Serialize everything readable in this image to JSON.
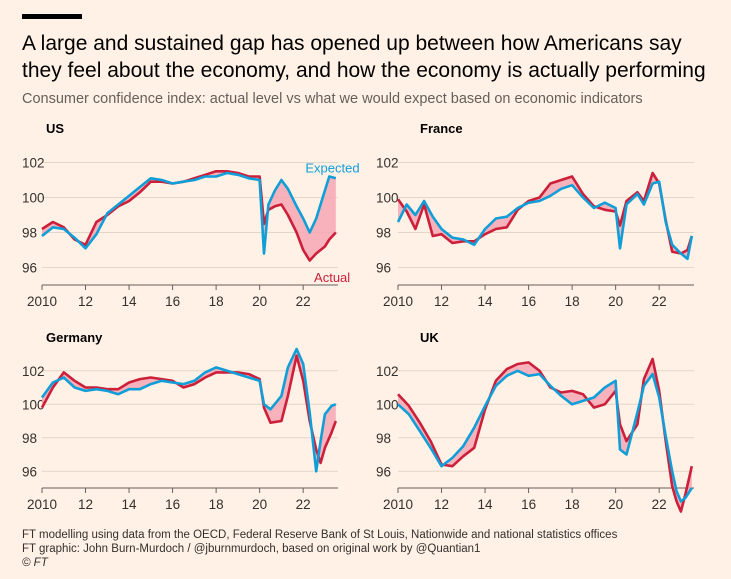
{
  "header": {
    "title": "A large and sustained gap has opened up between how Americans say they feel about the economy, and how the economy is actually performing",
    "subtitle": "Consumer confidence index: actual level vs what we would expect based on economic indicators"
  },
  "footer": {
    "line1": "FT modelling using data from the OECD, Federal Reserve Bank of St Louis, Nationwide and national statistics offices",
    "line2": "FT graphic: John Burn-Murdoch / @jburnmurdoch, based on original work by @Quantian1",
    "logo": "© FT"
  },
  "colors": {
    "expected": "#0F9ED8",
    "actual": "#CC1F3A",
    "gap_fill": "#F6A7B5",
    "background": "#FFF1E5"
  },
  "chart_data": [
    {
      "type": "line",
      "title": "US",
      "xlim": [
        2010,
        2023.6
      ],
      "ylim": [
        95,
        103
      ],
      "x_ticks": [
        "2010",
        "12",
        "14",
        "16",
        "18",
        "20",
        "22"
      ],
      "y_ticks": [
        "96",
        "98",
        "100",
        "102"
      ],
      "series": [
        {
          "name": "Expected",
          "x": [
            2010,
            2010.5,
            2011,
            2011.5,
            2012,
            2012.5,
            2013,
            2013.5,
            2014,
            2014.5,
            2015,
            2015.5,
            2016,
            2016.5,
            2017,
            2017.5,
            2018,
            2018.5,
            2019,
            2019.5,
            2020,
            2020.2,
            2020.4,
            2020.7,
            2021,
            2021.3,
            2021.7,
            2022,
            2022.3,
            2022.6,
            2023,
            2023.2,
            2023.5
          ],
          "y": [
            97.8,
            98.3,
            98.2,
            97.7,
            97.1,
            97.9,
            99.1,
            99.6,
            100.1,
            100.6,
            101.1,
            101.0,
            100.8,
            100.9,
            101.0,
            101.2,
            101.2,
            101.4,
            101.3,
            101.1,
            101.0,
            96.8,
            99.6,
            100.4,
            101.0,
            100.5,
            99.5,
            98.8,
            98.0,
            98.8,
            100.4,
            101.2,
            101.1
          ]
        },
        {
          "name": "Actual",
          "x": [
            2010,
            2010.5,
            2011,
            2011.5,
            2012,
            2012.5,
            2013,
            2013.5,
            2014,
            2014.5,
            2015,
            2015.5,
            2016,
            2016.5,
            2017,
            2017.5,
            2018,
            2018.5,
            2019,
            2019.5,
            2020,
            2020.2,
            2020.4,
            2020.7,
            2021,
            2021.3,
            2021.7,
            2022,
            2022.3,
            2022.6,
            2023,
            2023.2,
            2023.5
          ],
          "y": [
            98.2,
            98.6,
            98.3,
            97.6,
            97.3,
            98.6,
            99.0,
            99.5,
            99.8,
            100.3,
            100.9,
            100.9,
            100.8,
            100.9,
            101.1,
            101.3,
            101.5,
            101.5,
            101.4,
            101.2,
            101.2,
            98.5,
            99.3,
            99.5,
            99.6,
            99.0,
            98.0,
            97.0,
            96.4,
            96.8,
            97.2,
            97.6,
            98.0
          ]
        }
      ],
      "annotations": [
        "Expected",
        "Actual"
      ]
    },
    {
      "type": "line",
      "title": "France",
      "xlim": [
        2010,
        2023.6
      ],
      "ylim": [
        95,
        103
      ],
      "x_ticks": [
        "2010",
        "12",
        "14",
        "16",
        "18",
        "20",
        "22"
      ],
      "y_ticks": [
        "96",
        "98",
        "100",
        "102"
      ],
      "series": [
        {
          "name": "Expected",
          "x": [
            2010,
            2010.4,
            2010.8,
            2011.2,
            2011.6,
            2012,
            2012.5,
            2013,
            2013.5,
            2014,
            2014.5,
            2015,
            2015.5,
            2016,
            2016.5,
            2017,
            2017.5,
            2018,
            2018.5,
            2019,
            2019.5,
            2020,
            2020.2,
            2020.5,
            2021,
            2021.3,
            2021.7,
            2022,
            2022.3,
            2022.6,
            2023,
            2023.3,
            2023.5
          ],
          "y": [
            98.6,
            99.6,
            99.0,
            99.8,
            98.9,
            98.2,
            97.7,
            97.6,
            97.3,
            98.2,
            98.8,
            98.9,
            99.4,
            99.7,
            99.8,
            100.1,
            100.5,
            100.7,
            100.0,
            99.4,
            99.7,
            99.4,
            97.1,
            99.6,
            100.2,
            99.6,
            100.8,
            100.9,
            98.6,
            97.3,
            96.8,
            96.5,
            97.8
          ]
        },
        {
          "name": "Actual",
          "x": [
            2010,
            2010.4,
            2010.8,
            2011.2,
            2011.6,
            2012,
            2012.5,
            2013,
            2013.5,
            2014,
            2014.5,
            2015,
            2015.5,
            2016,
            2016.5,
            2017,
            2017.5,
            2018,
            2018.5,
            2019,
            2019.5,
            2020,
            2020.2,
            2020.5,
            2021,
            2021.3,
            2021.7,
            2022,
            2022.3,
            2022.6,
            2023,
            2023.3,
            2023.5
          ],
          "y": [
            99.9,
            99.2,
            98.2,
            99.6,
            97.8,
            97.9,
            97.4,
            97.5,
            97.5,
            97.9,
            98.2,
            98.3,
            99.3,
            99.8,
            100.0,
            100.8,
            101.0,
            101.2,
            100.2,
            99.5,
            99.3,
            99.2,
            98.4,
            99.8,
            100.3,
            99.8,
            101.4,
            100.8,
            98.7,
            96.9,
            96.8,
            97.0,
            97.8
          ]
        }
      ]
    },
    {
      "type": "line",
      "title": "Germany",
      "xlim": [
        2010,
        2023.6
      ],
      "ylim": [
        95,
        103
      ],
      "x_ticks": [
        "2010",
        "12",
        "14",
        "16",
        "18",
        "20",
        "22"
      ],
      "y_ticks": [
        "96",
        "98",
        "100",
        "102"
      ],
      "series": [
        {
          "name": "Expected",
          "x": [
            2010,
            2010.5,
            2011,
            2011.5,
            2012,
            2012.5,
            2013,
            2013.5,
            2014,
            2014.5,
            2015,
            2015.5,
            2016,
            2016.5,
            2017,
            2017.5,
            2018,
            2018.5,
            2019,
            2019.5,
            2020,
            2020.2,
            2020.5,
            2021,
            2021.3,
            2021.7,
            2022,
            2022.3,
            2022.6,
            2022.8,
            2023,
            2023.3,
            2023.5
          ],
          "y": [
            100.4,
            101.3,
            101.6,
            101.0,
            100.8,
            100.9,
            100.8,
            100.6,
            100.9,
            100.9,
            101.2,
            101.4,
            101.3,
            101.2,
            101.4,
            101.9,
            102.2,
            102.0,
            101.8,
            101.6,
            101.4,
            100.0,
            99.7,
            100.5,
            102.2,
            103.3,
            102.4,
            99.5,
            96.0,
            97.8,
            99.4,
            99.9,
            100.0
          ]
        },
        {
          "name": "Actual",
          "x": [
            2010,
            2010.5,
            2011,
            2011.5,
            2012,
            2012.5,
            2013,
            2013.5,
            2014,
            2014.5,
            2015,
            2015.5,
            2016,
            2016.5,
            2017,
            2017.5,
            2018,
            2018.5,
            2019,
            2019.5,
            2020,
            2020.2,
            2020.5,
            2021,
            2021.3,
            2021.7,
            2022,
            2022.3,
            2022.6,
            2022.8,
            2023,
            2023.3,
            2023.5
          ],
          "y": [
            99.8,
            101.0,
            101.9,
            101.4,
            101.0,
            101.0,
            100.9,
            100.9,
            101.3,
            101.5,
            101.6,
            101.5,
            101.4,
            101.0,
            101.2,
            101.6,
            101.9,
            101.9,
            101.9,
            101.8,
            101.5,
            99.8,
            98.9,
            99.0,
            100.5,
            102.9,
            101.4,
            99.0,
            97.3,
            96.5,
            97.4,
            98.3,
            99.0
          ]
        }
      ]
    },
    {
      "type": "line",
      "title": "UK",
      "xlim": [
        2010,
        2023.6
      ],
      "ylim": [
        95,
        103
      ],
      "x_ticks": [
        "2010",
        "12",
        "14",
        "16",
        "18",
        "20",
        "22"
      ],
      "y_ticks": [
        "96",
        "98",
        "100",
        "102"
      ],
      "series": [
        {
          "name": "Expected",
          "x": [
            2010,
            2010.5,
            2011,
            2011.5,
            2012,
            2012.5,
            2013,
            2013.5,
            2014,
            2014.5,
            2015,
            2015.5,
            2016,
            2016.5,
            2017,
            2017.5,
            2018,
            2018.5,
            2019,
            2019.5,
            2020,
            2020.2,
            2020.5,
            2021,
            2021.3,
            2021.7,
            2022,
            2022.3,
            2022.6,
            2022.8,
            2023,
            2023.2,
            2023.5
          ],
          "y": [
            100.0,
            99.4,
            98.4,
            97.4,
            96.3,
            96.8,
            97.5,
            98.6,
            99.9,
            101.1,
            101.7,
            102.0,
            101.7,
            101.8,
            101.1,
            100.5,
            100.0,
            100.2,
            100.4,
            101.0,
            101.4,
            97.3,
            97.0,
            99.5,
            101.1,
            101.8,
            100.4,
            98.1,
            96.0,
            94.8,
            94.2,
            94.4,
            95.0
          ]
        },
        {
          "name": "Actual",
          "x": [
            2010,
            2010.5,
            2011,
            2011.5,
            2012,
            2012.5,
            2013,
            2013.5,
            2014,
            2014.5,
            2015,
            2015.5,
            2016,
            2016.5,
            2017,
            2017.5,
            2018,
            2018.5,
            2019,
            2019.5,
            2020,
            2020.2,
            2020.5,
            2021,
            2021.3,
            2021.7,
            2022,
            2022.3,
            2022.6,
            2022.8,
            2023,
            2023.2,
            2023.5
          ],
          "y": [
            100.6,
            99.9,
            98.9,
            97.8,
            96.4,
            96.3,
            96.9,
            97.4,
            99.7,
            101.4,
            102.1,
            102.4,
            102.5,
            102.0,
            101.0,
            100.7,
            100.8,
            100.6,
            99.8,
            100.0,
            100.8,
            98.8,
            97.8,
            98.8,
            101.5,
            102.7,
            100.8,
            97.8,
            95.1,
            94.2,
            93.6,
            94.6,
            96.3
          ]
        }
      ]
    }
  ]
}
